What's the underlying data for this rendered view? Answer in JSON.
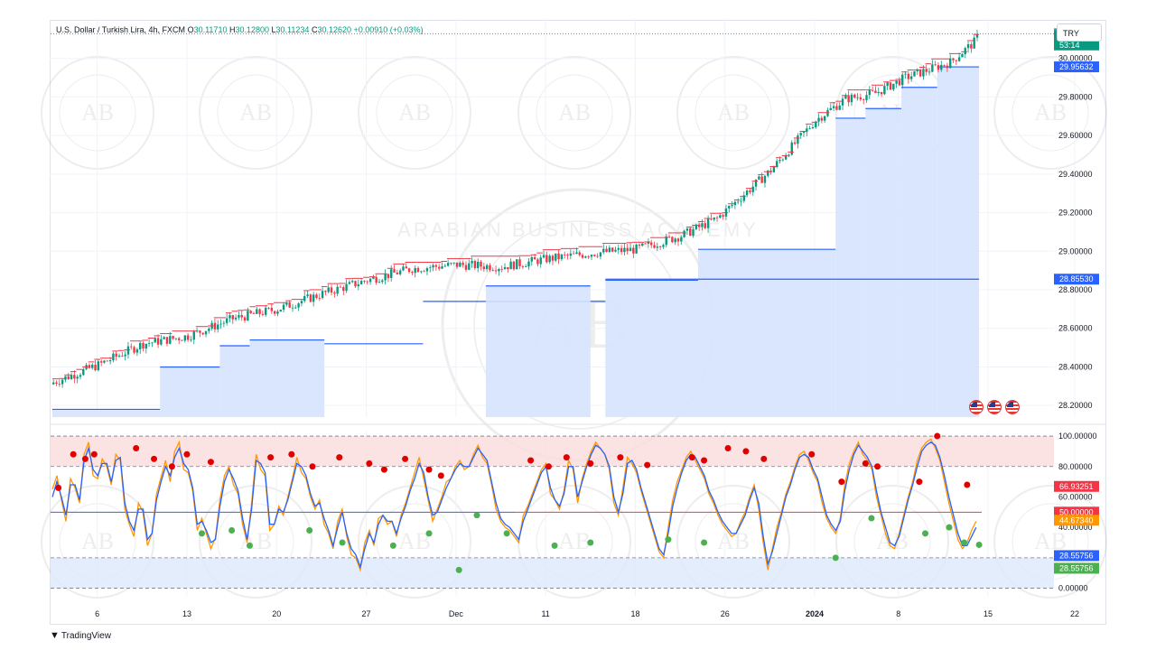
{
  "header": {
    "symbol_title": "U.S. Dollar / Turkish Lira, 4h, FXCM",
    "open_label": "O",
    "open": "30.11710",
    "high_label": "H",
    "high": "30.12800",
    "low_label": "L",
    "low": "30.11234",
    "close_label": "C",
    "close": "30.12620",
    "change": "+0.00910 (+0.03%)"
  },
  "currency_button": "TRY",
  "brand": "TradingView",
  "watermark": {
    "monogram": "AB",
    "name": "ARABIAN BUSINESS ACADEMY"
  },
  "price_badges": [
    {
      "text": "30.12800",
      "color": "#26a0c7"
    },
    {
      "text": "30.12620",
      "color": "#089981"
    },
    {
      "text": "53:14",
      "color": "#089981"
    },
    {
      "text": "29.95632",
      "color": "#2962ff"
    },
    {
      "text": "28.85530",
      "color": "#2962ff"
    }
  ],
  "osc_badges": [
    {
      "text": "66.93251",
      "color": "#f23645"
    },
    {
      "text": "50.00000",
      "color": "#f23645"
    },
    {
      "text": "44.67340",
      "color": "#ff9800"
    },
    {
      "text": "28.55756",
      "color": "#2962ff"
    },
    {
      "text": "28.55756",
      "color": "#4caf50"
    }
  ],
  "colors": {
    "up": "#089981",
    "down": "#f23645",
    "band": "#d6e3fd",
    "line": "#2962ff",
    "k": "#ff9800",
    "d": "#2962ff",
    "ob": "#fbdcdc",
    "os": "#dce8fb"
  },
  "chart_data": [
    {
      "type": "candlestick",
      "title": "U.S. Dollar / Turkish Lira, 4h, FXCM",
      "ylim": [
        28.14,
        30.2
      ],
      "yticks": [
        "30.00000",
        "29.80000",
        "29.60000",
        "29.40000",
        "29.20000",
        "29.00000",
        "28.80000",
        "28.60000",
        "28.40000",
        "28.20000"
      ],
      "ytick_values": [
        30.0,
        29.8,
        29.6,
        29.4,
        29.2,
        29.0,
        28.8,
        28.6,
        28.4,
        28.2
      ],
      "xticks": [
        "6",
        "13",
        "20",
        "27",
        "Dec",
        "11",
        "18",
        "26",
        "2024",
        "8",
        "15",
        "22"
      ],
      "xtick_bar_index": [
        15,
        45,
        75,
        105,
        135,
        165,
        195,
        225,
        255,
        283,
        313,
        342
      ],
      "bar_count": 310,
      "price_path": [
        [
          0,
          28.32
        ],
        [
          15,
          28.41
        ],
        [
          30,
          28.52
        ],
        [
          45,
          28.56
        ],
        [
          60,
          28.65
        ],
        [
          75,
          28.7
        ],
        [
          90,
          28.78
        ],
        [
          105,
          28.85
        ],
        [
          120,
          28.91
        ],
        [
          135,
          28.93
        ],
        [
          150,
          28.92
        ],
        [
          165,
          28.96
        ],
        [
          180,
          28.99
        ],
        [
          195,
          29.01
        ],
        [
          210,
          29.08
        ],
        [
          222,
          29.17
        ],
        [
          240,
          29.42
        ],
        [
          255,
          29.68
        ],
        [
          265,
          29.79
        ],
        [
          275,
          29.82
        ],
        [
          285,
          29.9
        ],
        [
          300,
          29.98
        ],
        [
          310,
          30.11
        ]
      ],
      "steps": [
        {
          "from": 0,
          "to": 36,
          "level": 28.18,
          "filled": true
        },
        {
          "from": 36,
          "to": 56,
          "level": 28.4,
          "filled": true
        },
        {
          "from": 56,
          "to": 66,
          "level": 28.51,
          "filled": true
        },
        {
          "from": 66,
          "to": 91,
          "level": 28.54,
          "filled": true
        },
        {
          "from": 91,
          "to": 124,
          "level": 28.52,
          "filled": false
        },
        {
          "from": 124,
          "to": 185,
          "level": 28.74,
          "filled": false
        },
        {
          "from": 145,
          "to": 180,
          "level": 28.82,
          "filled": true
        },
        {
          "from": 185,
          "to": 216,
          "level": 28.85,
          "filled": true
        },
        {
          "from": 216,
          "to": 262,
          "level": 29.01,
          "filled": true
        },
        {
          "from": 262,
          "to": 272,
          "level": 29.69,
          "filled": true
        },
        {
          "from": 272,
          "to": 284,
          "level": 29.74,
          "filled": true
        },
        {
          "from": 284,
          "to": 296,
          "level": 29.85,
          "filled": true
        },
        {
          "from": 296,
          "to": 310,
          "level": 29.95632,
          "filled": true
        }
      ],
      "long_support": {
        "from": 185,
        "to": 310,
        "level": 28.8553
      },
      "last_price": 30.1262,
      "high_line": 30.128
    },
    {
      "type": "line",
      "yticks": [
        "100.00000",
        "80.00000",
        "60.00000",
        "40.00000",
        "0.00000"
      ],
      "ytick_values": [
        100,
        80,
        60,
        40,
        0
      ],
      "ylim": [
        -5,
        103
      ],
      "bands": [
        {
          "from": 80,
          "to": 100,
          "kind": "overbought"
        },
        {
          "from": 0,
          "to": 20,
          "kind": "oversold"
        }
      ],
      "midline": 50,
      "series": [
        {
          "values": [
            65,
            74,
            58,
            44,
            72,
            66,
            56,
            88,
            96,
            74,
            72,
            85,
            80,
            68,
            88,
            84,
            52,
            42,
            34,
            56,
            50,
            28,
            36,
            62,
            73,
            84,
            70,
            90,
            96,
            78,
            76,
            64,
            38,
            46,
            36,
            26,
            33,
            58,
            74,
            80,
            68,
            62,
            42,
            30,
            56,
            88,
            78,
            74,
            38,
            42,
            54,
            48,
            60,
            72,
            86,
            76,
            72,
            60,
            52,
            58,
            42,
            36,
            26,
            44,
            52,
            34,
            22,
            20,
            12,
            30,
            38,
            28,
            46,
            48,
            42,
            44,
            34,
            48,
            56,
            66,
            76,
            86,
            72,
            58,
            44,
            52,
            60,
            70,
            72,
            80,
            84,
            78,
            80,
            88,
            94,
            86,
            82,
            68,
            52,
            44,
            40,
            38,
            34,
            30,
            48,
            54,
            62,
            70,
            78,
            82,
            62,
            58,
            52,
            64,
            84,
            78,
            56,
            72,
            82,
            90,
            96,
            92,
            88,
            78,
            56,
            48,
            66,
            86,
            82,
            76,
            64,
            54,
            44,
            34,
            24,
            20,
            40,
            58,
            70,
            78,
            86,
            90,
            84,
            78,
            72,
            62,
            56,
            48,
            42,
            38,
            34,
            36,
            44,
            50,
            60,
            68,
            52,
            30,
            12,
            26,
            40,
            50,
            62,
            70,
            80,
            88,
            90,
            84,
            76,
            70,
            56,
            46,
            40,
            36,
            46,
            68,
            82,
            90,
            96,
            88,
            84,
            78,
            60,
            48,
            36,
            28,
            26,
            36,
            48,
            60,
            70,
            84,
            92,
            96,
            98,
            92,
            84,
            70,
            56,
            44,
            32,
            26,
            30,
            38,
            44
          ]
        },
        {
          "values": [
            60,
            70,
            60,
            48,
            68,
            68,
            58,
            84,
            92,
            78,
            74,
            82,
            82,
            70,
            84,
            86,
            56,
            44,
            38,
            52,
            52,
            32,
            36,
            58,
            70,
            80,
            74,
            86,
            92,
            82,
            78,
            66,
            42,
            44,
            38,
            30,
            32,
            54,
            70,
            78,
            72,
            64,
            46,
            32,
            52,
            84,
            82,
            76,
            42,
            42,
            52,
            50,
            58,
            70,
            82,
            80,
            74,
            62,
            54,
            56,
            46,
            38,
            28,
            40,
            50,
            36,
            26,
            22,
            14,
            26,
            36,
            30,
            42,
            48,
            44,
            44,
            36,
            46,
            54,
            64,
            72,
            82,
            76,
            60,
            48,
            50,
            58,
            66,
            72,
            78,
            82,
            80,
            80,
            86,
            92,
            88,
            84,
            70,
            56,
            46,
            42,
            40,
            36,
            32,
            44,
            52,
            60,
            68,
            76,
            80,
            66,
            58,
            54,
            62,
            80,
            80,
            60,
            70,
            80,
            88,
            94,
            92,
            88,
            80,
            60,
            50,
            62,
            82,
            84,
            78,
            66,
            56,
            46,
            36,
            26,
            22,
            36,
            54,
            66,
            76,
            84,
            88,
            86,
            80,
            74,
            64,
            58,
            50,
            44,
            40,
            36,
            36,
            42,
            48,
            58,
            66,
            56,
            34,
            16,
            24,
            36,
            48,
            60,
            68,
            78,
            86,
            88,
            86,
            78,
            72,
            60,
            48,
            42,
            38,
            44,
            64,
            78,
            88,
            94,
            90,
            86,
            80,
            64,
            50,
            40,
            30,
            28,
            34,
            46,
            58,
            68,
            80,
            90,
            94,
            96,
            94,
            86,
            74,
            60,
            48,
            36,
            28,
            28,
            34,
            40
          ]
        }
      ],
      "high_dots": [
        [
          2,
          66
        ],
        [
          7,
          88
        ],
        [
          11,
          85
        ],
        [
          14,
          88
        ],
        [
          28,
          92
        ],
        [
          34,
          85
        ],
        [
          40,
          80
        ],
        [
          45,
          88
        ],
        [
          53,
          83
        ],
        [
          73,
          86
        ],
        [
          80,
          88
        ],
        [
          87,
          80
        ],
        [
          96,
          86
        ],
        [
          106,
          82
        ],
        [
          111,
          78
        ],
        [
          118,
          85
        ],
        [
          126,
          78
        ],
        [
          130,
          74
        ],
        [
          160,
          84
        ],
        [
          166,
          80
        ],
        [
          172,
          86
        ],
        [
          180,
          82
        ],
        [
          190,
          86
        ],
        [
          199,
          81
        ],
        [
          214,
          86
        ],
        [
          218,
          84
        ],
        [
          226,
          92
        ],
        [
          232,
          90
        ],
        [
          238,
          85
        ],
        [
          254,
          88
        ],
        [
          264,
          70
        ],
        [
          272,
          82
        ],
        [
          276,
          80
        ],
        [
          290,
          70
        ],
        [
          296,
          100
        ],
        [
          306,
          68
        ]
      ],
      "low_dots": [
        [
          50,
          36
        ],
        [
          60,
          38
        ],
        [
          66,
          28
        ],
        [
          86,
          38
        ],
        [
          97,
          30
        ],
        [
          114,
          28
        ],
        [
          126,
          36
        ],
        [
          136,
          12
        ],
        [
          142,
          48
        ],
        [
          152,
          36
        ],
        [
          168,
          28
        ],
        [
          180,
          30
        ],
        [
          206,
          32
        ],
        [
          218,
          30
        ],
        [
          262,
          20
        ],
        [
          274,
          46
        ],
        [
          292,
          36
        ],
        [
          300,
          40
        ],
        [
          305,
          30
        ],
        [
          310,
          28.55756
        ]
      ],
      "k_last": 44.6734,
      "d_last": 28.55756,
      "signal_last": 66.93251
    }
  ]
}
